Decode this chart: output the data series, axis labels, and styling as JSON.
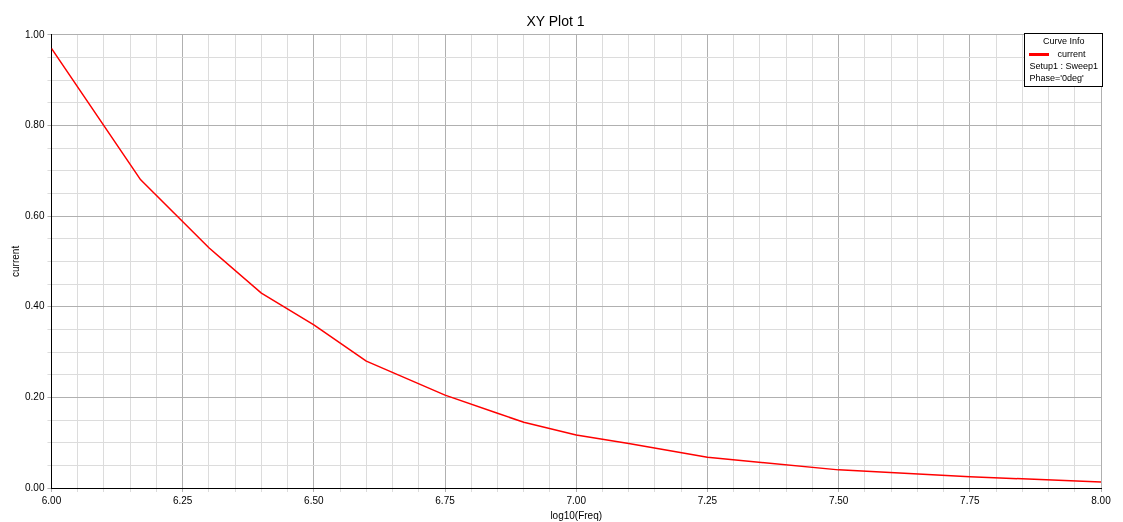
{
  "chart_data": {
    "type": "line",
    "title": "XY Plot 1",
    "xlabel": "log10(Freq)",
    "ylabel": "current",
    "legend_title": "Curve Info",
    "legend": "top right",
    "grid": true,
    "marker": "none",
    "line_style": "solid",
    "annotations": [
      "Setup1 : Sweep1",
      "Phase='0deg'"
    ],
    "xlim": [
      6,
      8
    ],
    "ylim": [
      0,
      1
    ],
    "xticks": [
      {
        "value": 6,
        "label": "6.00"
      },
      {
        "value": 6.05,
        "label": null
      },
      {
        "value": 6.1,
        "label": null
      },
      {
        "value": 6.15,
        "label": null
      },
      {
        "value": 6.2,
        "label": null
      },
      {
        "value": 6.25,
        "label": "6.25"
      },
      {
        "value": 6.3,
        "label": null
      },
      {
        "value": 6.35,
        "label": null
      },
      {
        "value": 6.4,
        "label": null
      },
      {
        "value": 6.45,
        "label": null
      },
      {
        "value": 6.5,
        "label": "6.50"
      },
      {
        "value": 6.55,
        "label": null
      },
      {
        "value": 6.6,
        "label": null
      },
      {
        "value": 6.65,
        "label": null
      },
      {
        "value": 6.7,
        "label": null
      },
      {
        "value": 6.75,
        "label": "6.75"
      },
      {
        "value": 6.8,
        "label": null
      },
      {
        "value": 6.85,
        "label": null
      },
      {
        "value": 6.9,
        "label": null
      },
      {
        "value": 6.95,
        "label": null
      },
      {
        "value": 7,
        "label": "7.00"
      },
      {
        "value": 7.05,
        "label": null
      },
      {
        "value": 7.1,
        "label": null
      },
      {
        "value": 7.15,
        "label": null
      },
      {
        "value": 7.2,
        "label": null
      },
      {
        "value": 7.25,
        "label": "7.25"
      },
      {
        "value": 7.3,
        "label": null
      },
      {
        "value": 7.35,
        "label": null
      },
      {
        "value": 7.4,
        "label": null
      },
      {
        "value": 7.45,
        "label": null
      },
      {
        "value": 7.5,
        "label": "7.50"
      },
      {
        "value": 7.55,
        "label": null
      },
      {
        "value": 7.6,
        "label": null
      },
      {
        "value": 7.65,
        "label": null
      },
      {
        "value": 7.7,
        "label": null
      },
      {
        "value": 7.75,
        "label": "7.75"
      },
      {
        "value": 7.8,
        "label": null
      },
      {
        "value": 7.85,
        "label": null
      },
      {
        "value": 7.9,
        "label": null
      },
      {
        "value": 7.95,
        "label": null
      },
      {
        "value": 8,
        "label": "8.00"
      }
    ],
    "yticks": [
      {
        "value": 0,
        "label": "0.00"
      },
      {
        "value": 0.05,
        "label": null
      },
      {
        "value": 0.1,
        "label": null
      },
      {
        "value": 0.15,
        "label": null
      },
      {
        "value": 0.2,
        "label": "0.20"
      },
      {
        "value": 0.25,
        "label": null
      },
      {
        "value": 0.3,
        "label": null
      },
      {
        "value": 0.35,
        "label": null
      },
      {
        "value": 0.4,
        "label": "0.40"
      },
      {
        "value": 0.45,
        "label": null
      },
      {
        "value": 0.5,
        "label": null
      },
      {
        "value": 0.55,
        "label": null
      },
      {
        "value": 0.6,
        "label": "0.60"
      },
      {
        "value": 0.65,
        "label": null
      },
      {
        "value": 0.7,
        "label": null
      },
      {
        "value": 0.75,
        "label": null
      },
      {
        "value": 0.8,
        "label": "0.80"
      },
      {
        "value": 0.85,
        "label": null
      },
      {
        "value": 0.9,
        "label": null
      },
      {
        "value": 0.95,
        "label": null
      },
      {
        "value": 1,
        "label": "1.00"
      }
    ],
    "x": [
      6,
      6.17,
      6.3,
      6.4,
      6.5,
      6.6,
      6.75,
      6.85,
      6.9,
      7,
      7.1,
      7.25,
      7.5,
      7.75,
      8
    ],
    "series": [
      {
        "name": "current",
        "color": "#ff0000",
        "values": [
          0.97,
          0.68,
          0.53,
          0.43,
          0.36,
          0.28,
          0.205,
          0.165,
          0.145,
          0.117,
          0.098,
          0.068,
          0.04,
          0.025,
          0.013
        ]
      }
    ]
  }
}
